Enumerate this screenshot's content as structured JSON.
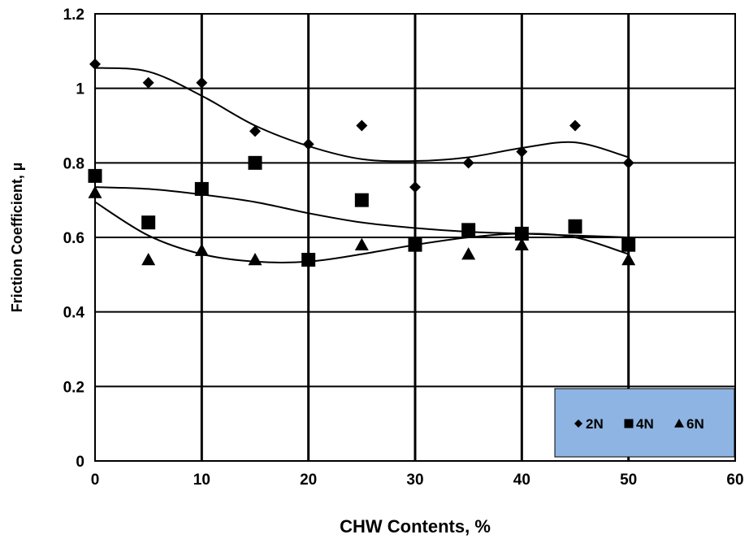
{
  "chart_data": {
    "type": "scatter",
    "title": "",
    "xlabel": "CHW Contents, %",
    "ylabel": "Friction Coefficient, µ",
    "xlim": [
      0,
      60
    ],
    "ylim": [
      0,
      1.2
    ],
    "x_ticks": [
      0,
      10,
      20,
      30,
      40,
      50,
      60
    ],
    "x_tick_labels": [
      "0",
      "10",
      "20",
      "30",
      "40",
      "50",
      "60"
    ],
    "y_ticks": [
      0,
      0.2,
      0.4,
      0.6,
      0.8,
      1.0,
      1.2
    ],
    "y_tick_labels": [
      "0",
      "0.2",
      "0.4",
      "0.6",
      "0.8",
      "1",
      "1.2"
    ],
    "grid": true,
    "legend_position": "bottom-right",
    "legend_background": "#8db4e2",
    "x": [
      0,
      5,
      10,
      15,
      20,
      25,
      30,
      35,
      40,
      45,
      50
    ],
    "series": [
      {
        "name": "2N",
        "marker": "diamond",
        "color": "#000000",
        "values": [
          1.065,
          1.015,
          1.015,
          0.885,
          0.85,
          0.9,
          0.735,
          0.8,
          0.83,
          0.9,
          0.8
        ],
        "trend": [
          1.055,
          1.045,
          0.98,
          0.9,
          0.845,
          0.81,
          0.805,
          0.815,
          0.84,
          0.855,
          0.815
        ]
      },
      {
        "name": "4N",
        "marker": "square",
        "color": "#000000",
        "values": [
          0.765,
          0.64,
          0.73,
          0.8,
          0.54,
          0.7,
          0.58,
          0.62,
          0.61,
          0.63,
          0.58
        ],
        "trend": [
          0.735,
          0.73,
          0.715,
          0.695,
          0.665,
          0.64,
          0.625,
          0.615,
          0.61,
          0.605,
          0.6
        ]
      },
      {
        "name": "6N",
        "marker": "triangle",
        "color": "#000000",
        "values": [
          0.72,
          0.54,
          0.565,
          0.54,
          0.54,
          0.58,
          0.58,
          0.555,
          0.58,
          0.625,
          0.54
        ],
        "trend": [
          0.695,
          0.605,
          0.555,
          0.535,
          0.535,
          0.555,
          0.58,
          0.6,
          0.61,
          0.6,
          0.555
        ]
      }
    ]
  }
}
